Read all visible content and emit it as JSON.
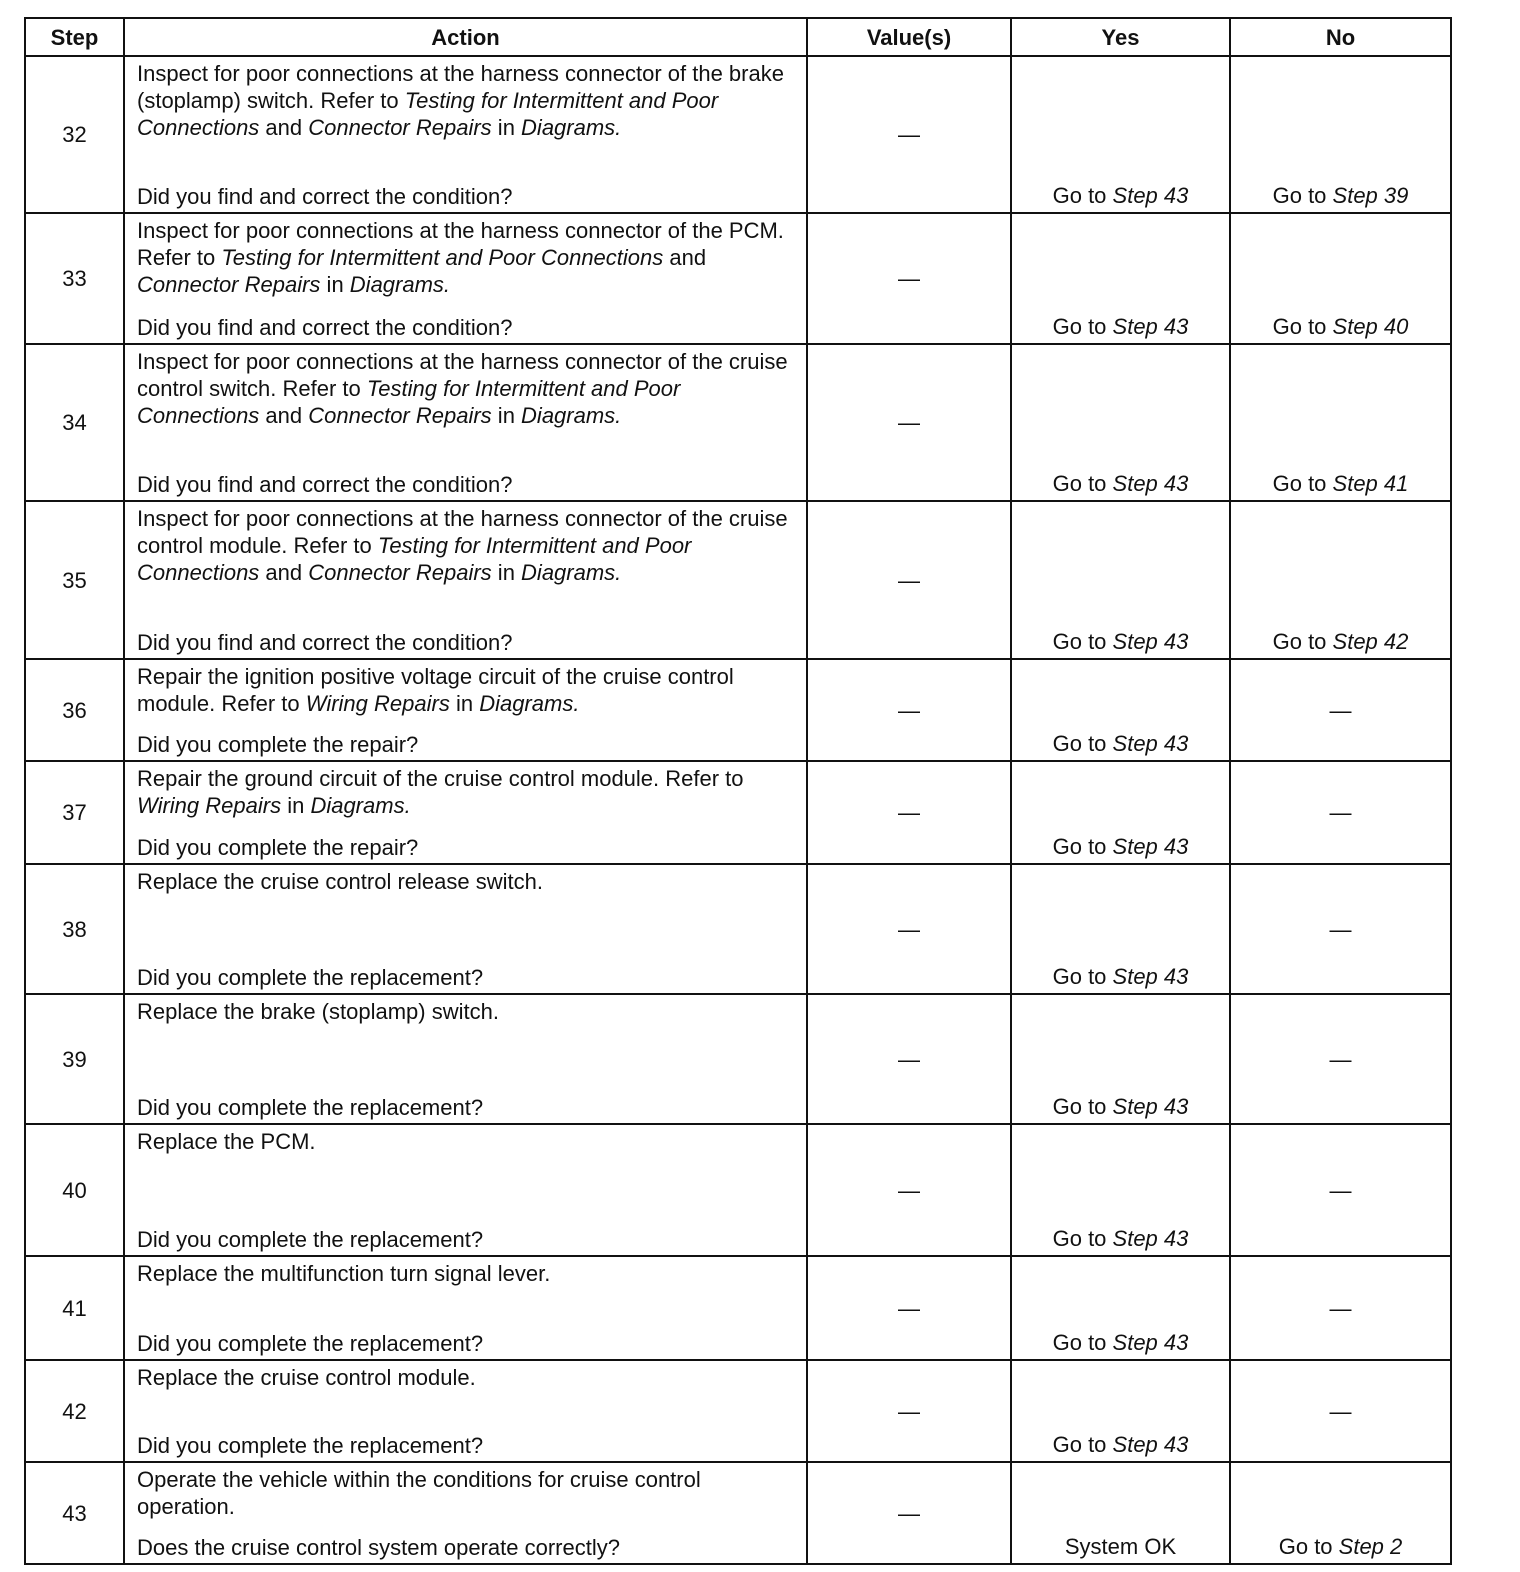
{
  "headers": [
    "Step",
    "Action",
    "Value(s)",
    "Yes",
    "No"
  ],
  "rows": [
    {
      "step": "32",
      "h": 155,
      "action": [
        {
          "t": "Inspect for poor connections at the harness connector of the brake (stoplamp) switch. Refer to "
        },
        {
          "t": "Testing for Intermittent and Poor Connections",
          "i": true
        },
        {
          "t": " and "
        },
        {
          "t": "Connector Repairs",
          "i": true
        },
        {
          "t": " in "
        },
        {
          "t": "Diagrams.",
          "i": true
        }
      ],
      "question": "Did you find and correct the condition?",
      "value": "—",
      "yes": [
        {
          "t": "Go to "
        },
        {
          "t": "Step 43",
          "i": true
        }
      ],
      "no": [
        {
          "t": "Go to "
        },
        {
          "t": "Step 39",
          "i": true
        }
      ]
    },
    {
      "step": "33",
      "h": 129,
      "action": [
        {
          "t": "Inspect for poor connections at the harness connector of the PCM. Refer to "
        },
        {
          "t": "Testing for Intermittent and Poor Connections",
          "i": true
        },
        {
          "t": " and "
        },
        {
          "t": "Connector Repairs",
          "i": true
        },
        {
          "t": " in "
        },
        {
          "t": "Diagrams.",
          "i": true
        }
      ],
      "question": "Did you find and correct the condition?",
      "value": "—",
      "yes": [
        {
          "t": "Go to "
        },
        {
          "t": "Step 43",
          "i": true
        }
      ],
      "no": [
        {
          "t": "Go to "
        },
        {
          "t": "Step 40",
          "i": true
        }
      ]
    },
    {
      "step": "34",
      "h": 155,
      "action": [
        {
          "t": "Inspect for poor connections at the harness connector of the cruise control switch. Refer to "
        },
        {
          "t": "Testing for Intermittent and Poor Connections",
          "i": true
        },
        {
          "t": " and "
        },
        {
          "t": "Connector Repairs",
          "i": true
        },
        {
          "t": " in "
        },
        {
          "t": "Diagrams.",
          "i": true
        }
      ],
      "question": "Did you find and correct the condition?",
      "value": "—",
      "yes": [
        {
          "t": "Go to "
        },
        {
          "t": "Step 43",
          "i": true
        }
      ],
      "no": [
        {
          "t": "Go to "
        },
        {
          "t": "Step 41",
          "i": true
        }
      ]
    },
    {
      "step": "35",
      "h": 156,
      "action": [
        {
          "t": "Inspect for poor connections at the harness connector of the cruise control module. Refer to "
        },
        {
          "t": "Testing for Intermittent and Poor Connections",
          "i": true
        },
        {
          "t": " and "
        },
        {
          "t": "Connector Repairs",
          "i": true
        },
        {
          "t": " in "
        },
        {
          "t": "Diagrams.",
          "i": true
        }
      ],
      "question": "Did you find and correct the condition?",
      "value": "—",
      "yes": [
        {
          "t": "Go to "
        },
        {
          "t": "Step 43",
          "i": true
        }
      ],
      "no": [
        {
          "t": "Go to "
        },
        {
          "t": "Step 42",
          "i": true
        }
      ]
    },
    {
      "step": "36",
      "h": 100,
      "action": [
        {
          "t": "Repair the ignition positive voltage circuit of the cruise control module. Refer to "
        },
        {
          "t": "Wiring Repairs",
          "i": true
        },
        {
          "t": " in "
        },
        {
          "t": "Diagrams.",
          "i": true
        }
      ],
      "question": "Did you complete the repair?",
      "value": "—",
      "yes": [
        {
          "t": "Go to "
        },
        {
          "t": "Step 43",
          "i": true
        }
      ],
      "no": [
        {
          "t": "—"
        }
      ]
    },
    {
      "step": "37",
      "h": 101,
      "action": [
        {
          "t": "Repair the ground circuit of the cruise control module. Refer to "
        },
        {
          "t": "Wiring Repairs",
          "i": true
        },
        {
          "t": " in "
        },
        {
          "t": "Diagrams.",
          "i": true
        }
      ],
      "question": "Did you complete the repair?",
      "value": "—",
      "yes": [
        {
          "t": "Go to "
        },
        {
          "t": "Step 43",
          "i": true
        }
      ],
      "no": [
        {
          "t": "—"
        }
      ]
    },
    {
      "step": "38",
      "h": 128,
      "action": [
        {
          "t": "Replace the cruise control release switch."
        }
      ],
      "question": "Did you complete the replacement?",
      "value": "—",
      "yes": [
        {
          "t": "Go to "
        },
        {
          "t": "Step 43",
          "i": true
        }
      ],
      "no": [
        {
          "t": "—"
        }
      ]
    },
    {
      "step": "39",
      "h": 128,
      "action": [
        {
          "t": "Replace the brake (stoplamp) switch."
        }
      ],
      "question": "Did you complete the replacement?",
      "value": "—",
      "yes": [
        {
          "t": "Go to "
        },
        {
          "t": "Step 43",
          "i": true
        }
      ],
      "no": [
        {
          "t": "—"
        }
      ]
    },
    {
      "step": "40",
      "h": 130,
      "action": [
        {
          "t": "Replace the PCM."
        }
      ],
      "question": "Did you complete the replacement?",
      "value": "—",
      "yes": [
        {
          "t": "Go to "
        },
        {
          "t": "Step 43",
          "i": true
        }
      ],
      "no": [
        {
          "t": "—"
        }
      ]
    },
    {
      "step": "41",
      "h": 102,
      "action": [
        {
          "t": "Replace the multifunction turn signal lever."
        }
      ],
      "question": "Did you complete the replacement?",
      "value": "—",
      "yes": [
        {
          "t": "Go to "
        },
        {
          "t": "Step 43",
          "i": true
        }
      ],
      "no": [
        {
          "t": "—"
        }
      ]
    },
    {
      "step": "42",
      "h": 100,
      "action": [
        {
          "t": "Replace the cruise control module."
        }
      ],
      "question": "Did you complete the replacement?",
      "value": "—",
      "yes": [
        {
          "t": "Go to "
        },
        {
          "t": "Step 43",
          "i": true
        }
      ],
      "no": [
        {
          "t": "—"
        }
      ]
    },
    {
      "step": "43",
      "h": 100,
      "action": [
        {
          "t": "Operate the vehicle within the conditions for cruise control operation."
        }
      ],
      "question": "Does the cruise control system operate correctly?",
      "value": "—",
      "yes": [
        {
          "t": "System OK"
        }
      ],
      "no": [
        {
          "t": "Go to "
        },
        {
          "t": "Step 2",
          "i": true
        }
      ]
    }
  ]
}
